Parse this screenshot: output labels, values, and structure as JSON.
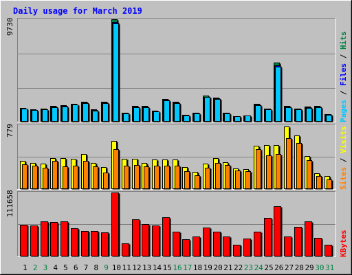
{
  "chart_data": {
    "type": "bar",
    "title": "Daily usage for March 2019",
    "categories": [
      "1",
      "2",
      "3",
      "4",
      "5",
      "6",
      "7",
      "8",
      "9",
      "10",
      "11",
      "12",
      "13",
      "14",
      "15",
      "16",
      "17",
      "18",
      "19",
      "20",
      "21",
      "22",
      "23",
      "24",
      "25",
      "26",
      "27",
      "28",
      "29",
      "30",
      "31"
    ],
    "weekend_days": [
      "2",
      "3",
      "9",
      "16",
      "17",
      "23",
      "24",
      "30",
      "31"
    ],
    "panels": [
      {
        "id": "pages-files-hits",
        "ymax_label": "9730",
        "ymax": 9730,
        "axis_label": [
          "Pages",
          "Files",
          "Hits"
        ],
        "axis_label_colors": [
          "#00c8ff",
          "#0000ff",
          "#008040"
        ],
        "grid": true,
        "series": [
          {
            "name": "Hits",
            "color": "#008040",
            "values": [
              1300,
              1180,
              1230,
              1480,
              1560,
              1700,
              1900,
              1150,
              1880,
              9730,
              870,
              1490,
              1490,
              1050,
              2150,
              1900,
              670,
              870,
              2480,
              2300,
              870,
              530,
              620,
              1670,
              1270,
              5600,
              1480,
              1260,
              1410,
              1470,
              720
            ]
          },
          {
            "name": "Files",
            "color": "#0000ff",
            "values": [
              1250,
              1130,
              1180,
              1420,
              1500,
              1640,
              1830,
              1100,
              1820,
              9500,
              830,
              1430,
              1430,
              1000,
              2070,
              1830,
              640,
              830,
              2380,
              2210,
              830,
              500,
              590,
              1600,
              1220,
              5350,
              1420,
              1210,
              1350,
              1410,
              690
            ]
          },
          {
            "name": "Pages",
            "color": "#00c8ff",
            "values": [
              1220,
              1100,
              1150,
              1390,
              1460,
              1600,
              1790,
              1070,
              1780,
              9350,
              810,
              1400,
              1400,
              980,
              2030,
              1790,
              620,
              810,
              2330,
              2160,
              810,
              490,
              570,
              1560,
              1190,
              5200,
              1390,
              1180,
              1320,
              1380,
              670
            ]
          }
        ]
      },
      {
        "id": "visits-sites",
        "ymax_label": "779",
        "ymax": 779,
        "axis_label": [
          "Sites",
          "Visits"
        ],
        "axis_label_colors": [
          "#ff8000",
          "#ffff00"
        ],
        "grid": true,
        "series": [
          {
            "name": "Visits",
            "color": "#ffff00",
            "values": [
              345,
              320,
              312,
              380,
              375,
              368,
              430,
              322,
              264,
              588,
              372,
              372,
              320,
              364,
              362,
              362,
              272,
              212,
              306,
              381,
              326,
              255,
              242,
              530,
              532,
              535,
              760,
              650,
              398,
              190,
              160
            ]
          },
          {
            "name": "Sites",
            "color": "#ff8000",
            "values": [
              305,
              282,
              260,
              340,
              280,
              282,
              340,
              280,
              200,
              490,
              281,
              296,
              280,
              282,
              282,
              282,
              216,
              166,
              260,
              322,
              292,
              230,
              214,
              488,
              414,
              429,
              619,
              558,
              352,
              155,
              118
            ]
          }
        ]
      },
      {
        "id": "kbytes",
        "ymax_label": "111658",
        "ymax": 111658,
        "axis_label": [
          "KBytes"
        ],
        "axis_label_colors": [
          "#ff0000"
        ],
        "grid": true,
        "series": [
          {
            "name": "KBytes",
            "color": "#ff0000",
            "values": [
              55800,
              54600,
              61000,
              60200,
              61000,
              48800,
              44000,
              44000,
              42600,
              111658,
              23000,
              64500,
              57000,
              54100,
              68300,
              43000,
              30000,
              34300,
              51000,
              43600,
              35000,
              21000,
              31000,
              42900,
              67300,
              87600,
              35000,
              51200,
              61100,
              32500,
              20000
            ]
          }
        ]
      }
    ]
  },
  "colors": {
    "background": "#c0c0c0",
    "panel": "#c0c0c0",
    "title": "#0000ff",
    "weekday_label": "#000000",
    "weekend_label": "#008040"
  }
}
